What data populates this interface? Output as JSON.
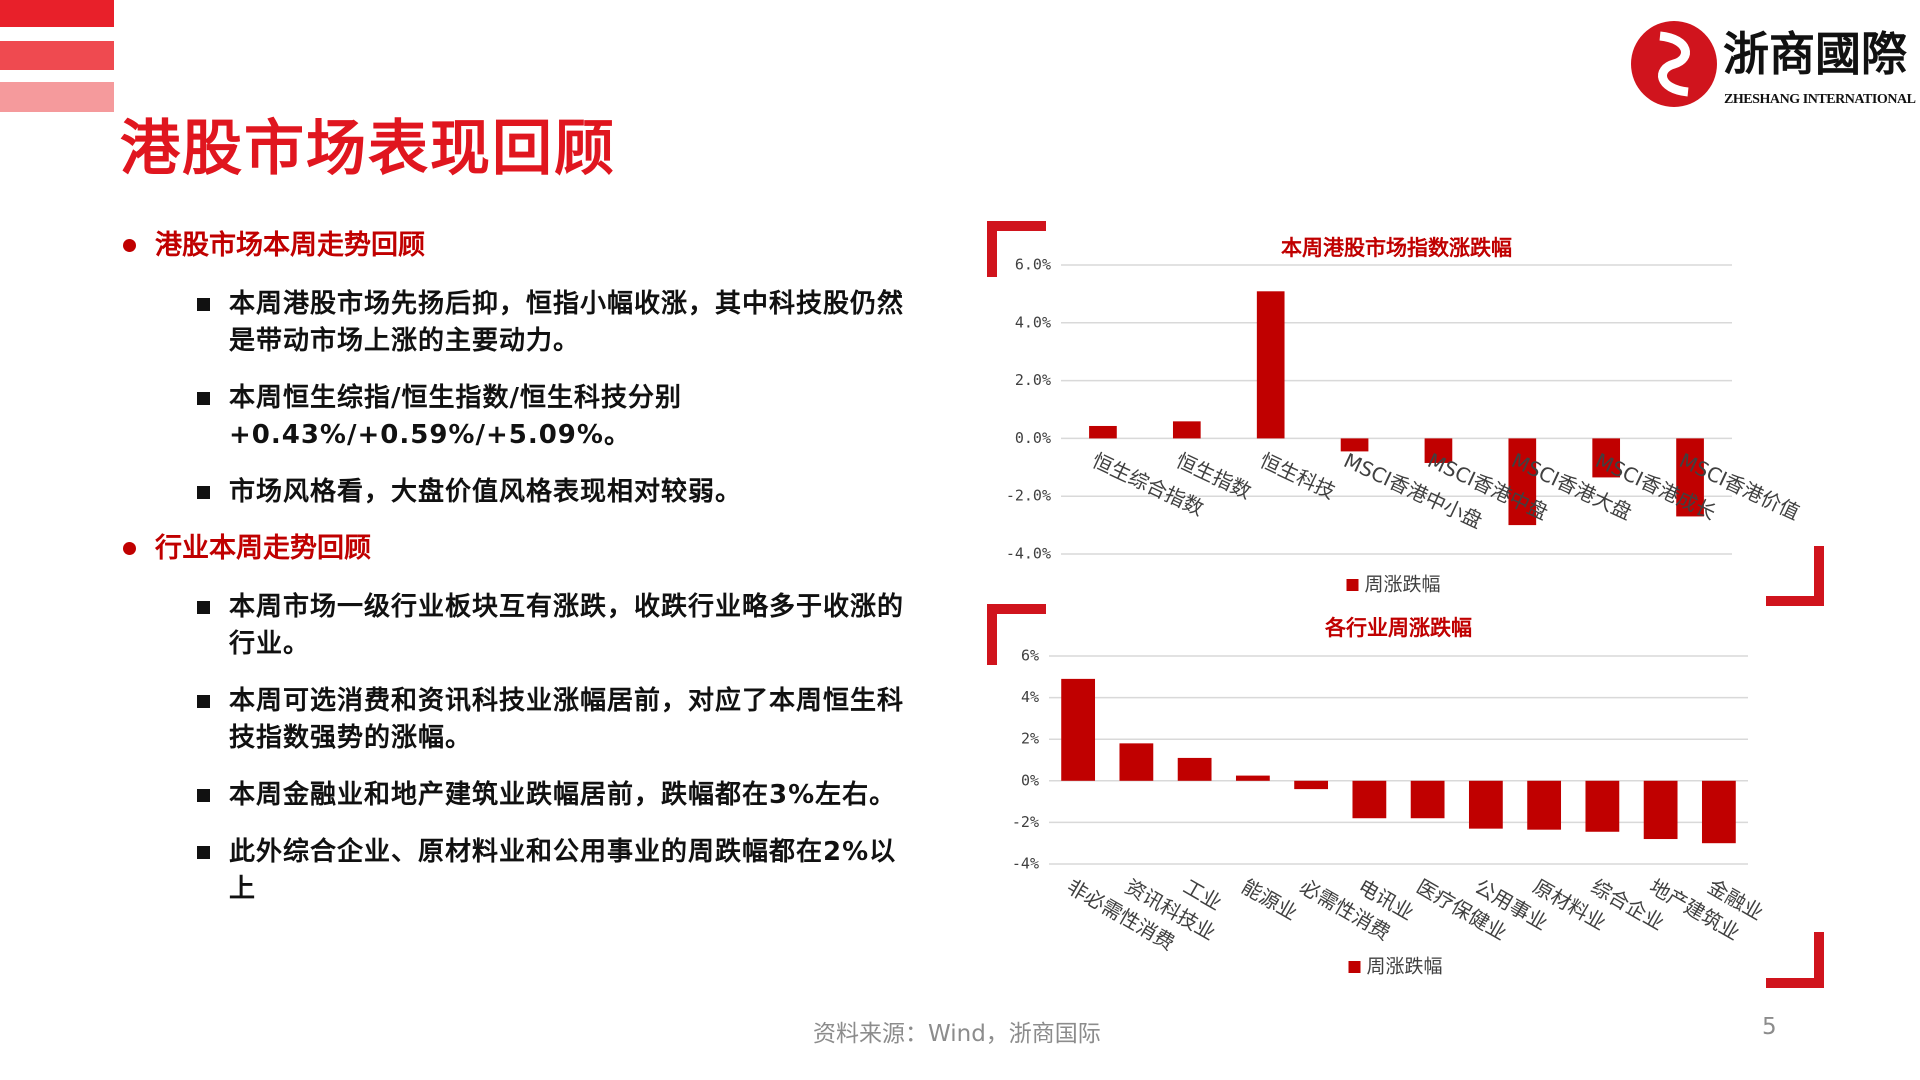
{
  "header": {
    "title": "港股市场表现回顾",
    "logo_cn": "浙商國際",
    "logo_en": "ZHESHANG INTERNATIONAL"
  },
  "sections": [
    {
      "heading": "港股市场本周走势回顾",
      "bullets": [
        "本周港股市场先扬后抑，恒指小幅收涨，其中科技股仍然是带动市场上涨的主要动力。",
        "本周恒生综指/恒生指数/恒生科技分别+0.43%/+0.59%/+5.09%。",
        "市场风格看，大盘价值风格表现相对较弱。"
      ]
    },
    {
      "heading": "行业本周走势回顾",
      "bullets": [
        "本周市场一级行业板块互有涨跌，收跌行业略多于收涨的行业。",
        "本周可选消费和资讯科技业涨幅居前，对应了本周恒生科技指数强势的涨幅。",
        "本周金融业和地产建筑业跌幅居前，跌幅都在3%左右。",
        "此外综合企业、原材料业和公用事业的周跌幅都在2%以上"
      ]
    }
  ],
  "footer": {
    "source": "资料来源：Wind，浙商国际",
    "page": "5"
  },
  "chart_data": [
    {
      "type": "bar",
      "title": "本周港股市场指数涨跌幅",
      "categories": [
        "恒生综合指数",
        "恒生指数",
        "恒生科技",
        "MSCI香港中小盘",
        "MSCI香港中盘",
        "MSCI香港大盘",
        "MSCI香港成长",
        "MSCI香港价值"
      ],
      "series": [
        {
          "name": "周涨跌幅",
          "color": "#c00000",
          "values": [
            0.43,
            0.59,
            5.09,
            -0.45,
            -0.85,
            -3.0,
            -1.35,
            -2.7
          ]
        }
      ],
      "ylim": [
        -4,
        6
      ],
      "yticks": [
        {
          "value": -4,
          "label": "-4.0%"
        },
        {
          "value": -2,
          "label": "-2.0%"
        },
        {
          "value": 0,
          "label": "0.0%"
        },
        {
          "value": 2,
          "label": "2.0%"
        },
        {
          "value": 4,
          "label": "4.0%"
        },
        {
          "value": 6,
          "label": "6.0%"
        }
      ],
      "grid": true,
      "legend": "bottom"
    },
    {
      "type": "bar",
      "title": "各行业周涨跌幅",
      "categories": [
        "非必需性消费",
        "资讯科技业",
        "工业",
        "能源业",
        "必需性消费",
        "电讯业",
        "医疗保健业",
        "公用事业",
        "原材料业",
        "综合企业",
        "地产建筑业",
        "金融业"
      ],
      "series": [
        {
          "name": "周涨跌幅",
          "color": "#c00000",
          "values": [
            4.9,
            1.8,
            1.1,
            0.25,
            -0.4,
            -1.8,
            -1.8,
            -2.3,
            -2.35,
            -2.45,
            -2.8,
            -3.0
          ]
        }
      ],
      "ylim": [
        -4,
        6
      ],
      "yticks": [
        {
          "value": -4,
          "label": "-4%"
        },
        {
          "value": -2,
          "label": "-2%"
        },
        {
          "value": 0,
          "label": "0%"
        },
        {
          "value": 2,
          "label": "2%"
        },
        {
          "value": 4,
          "label": "4%"
        },
        {
          "value": 6,
          "label": "6%"
        }
      ],
      "grid": true,
      "legend": "bottom"
    }
  ]
}
